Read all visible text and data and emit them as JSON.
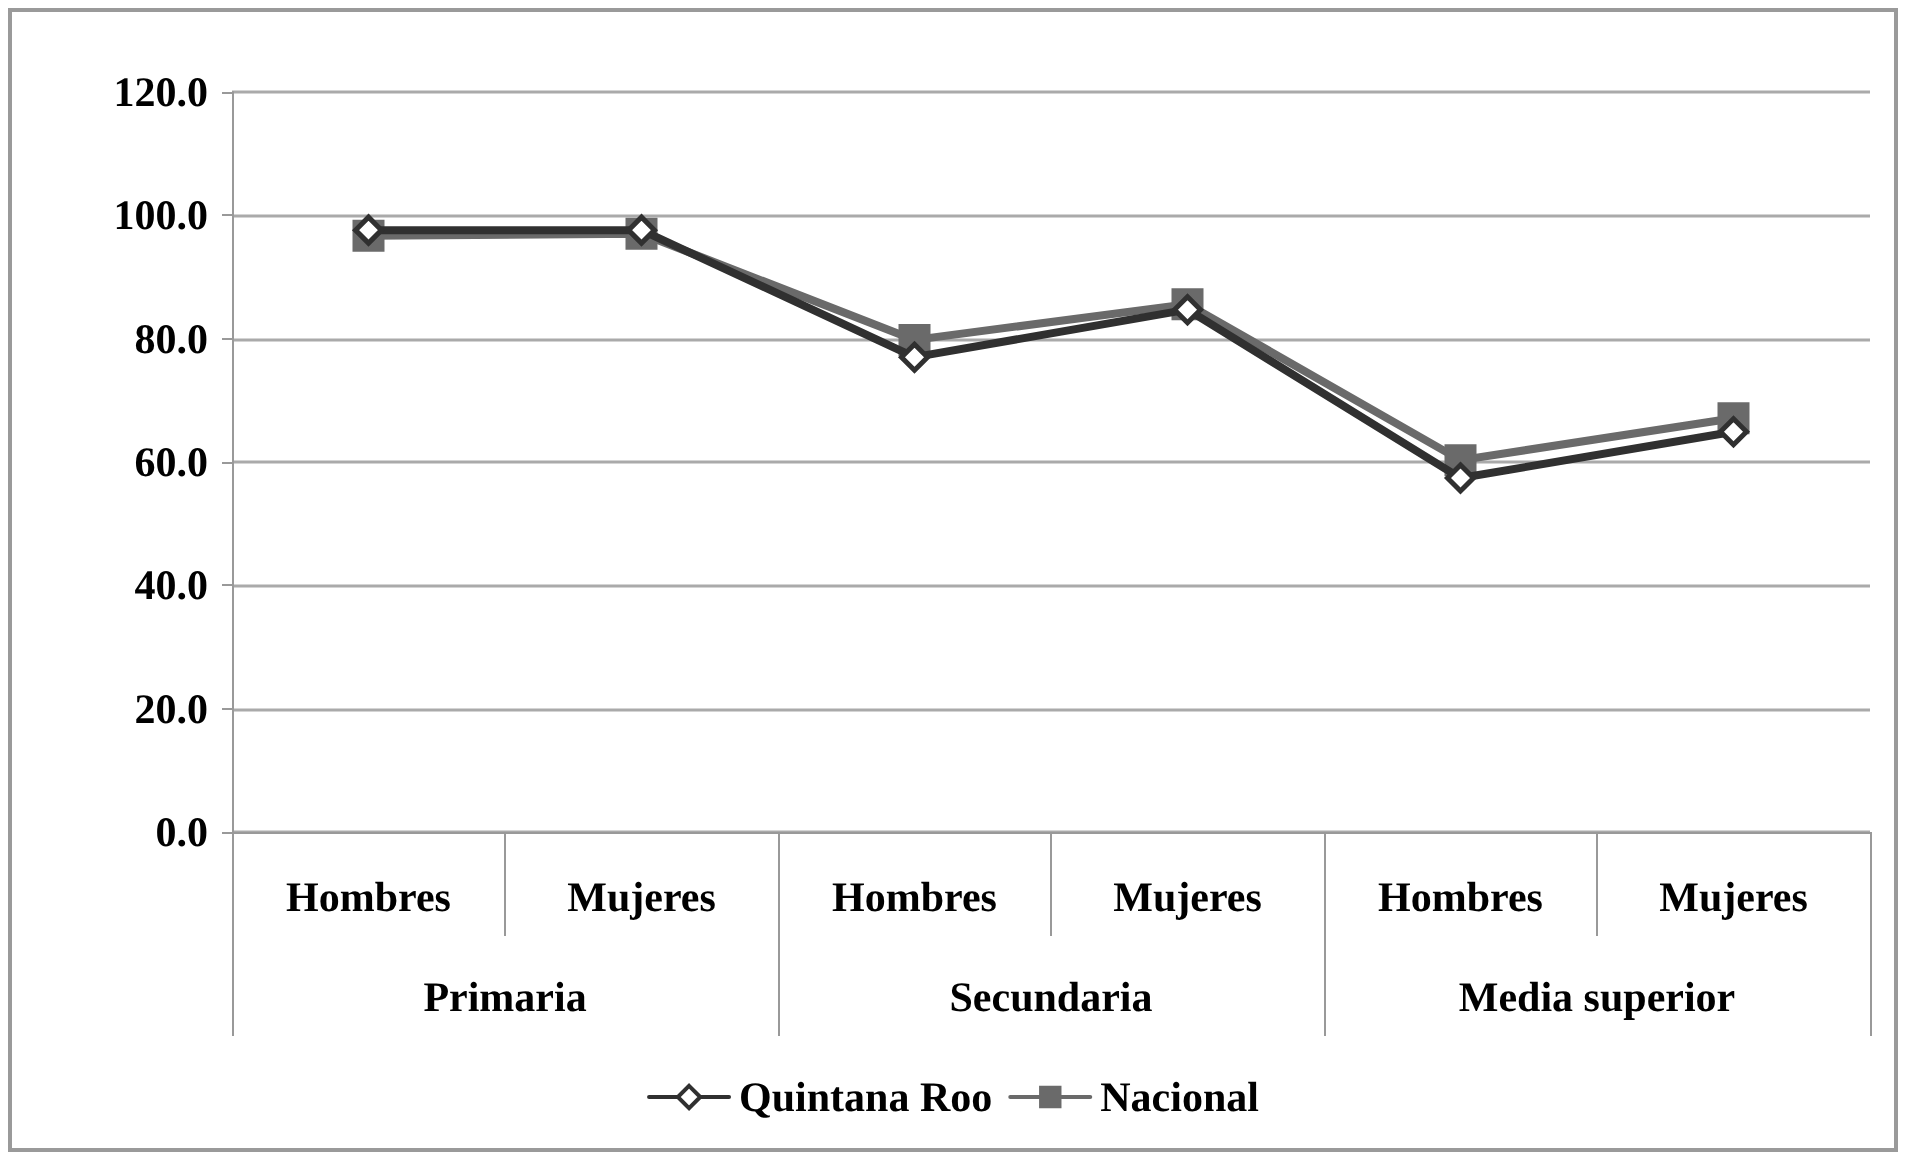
{
  "chart_data": {
    "type": "line",
    "categories": [
      "Hombres",
      "Mujeres",
      "Hombres",
      "Mujeres",
      "Hombres",
      "Mujeres"
    ],
    "annotations": [
      "Primaria",
      "Secundaria",
      "Media superior"
    ],
    "series": [
      {
        "name": "Quintana Roo",
        "color": "#303030",
        "marker": "diamond",
        "values": [
          97.6,
          97.6,
          77.0,
          84.7,
          57.4,
          64.9
        ]
      },
      {
        "name": "Nacional",
        "color": "#6a6a6a",
        "marker": "square",
        "values": [
          96.7,
          97.0,
          79.8,
          85.6,
          60.3,
          67.1
        ]
      }
    ],
    "ylim": [
      0,
      120
    ],
    "yticks": [
      {
        "value": 0,
        "label": "0.0"
      },
      {
        "value": 20,
        "label": "20.0"
      },
      {
        "value": 40,
        "label": "40.0"
      },
      {
        "value": 60,
        "label": "60.0"
      },
      {
        "value": 80,
        "label": "80.0"
      },
      {
        "value": 100,
        "label": "100.0"
      },
      {
        "value": 120,
        "label": "120.0"
      }
    ],
    "grid": "y",
    "legend": "bottom",
    "line_style": "solid"
  }
}
